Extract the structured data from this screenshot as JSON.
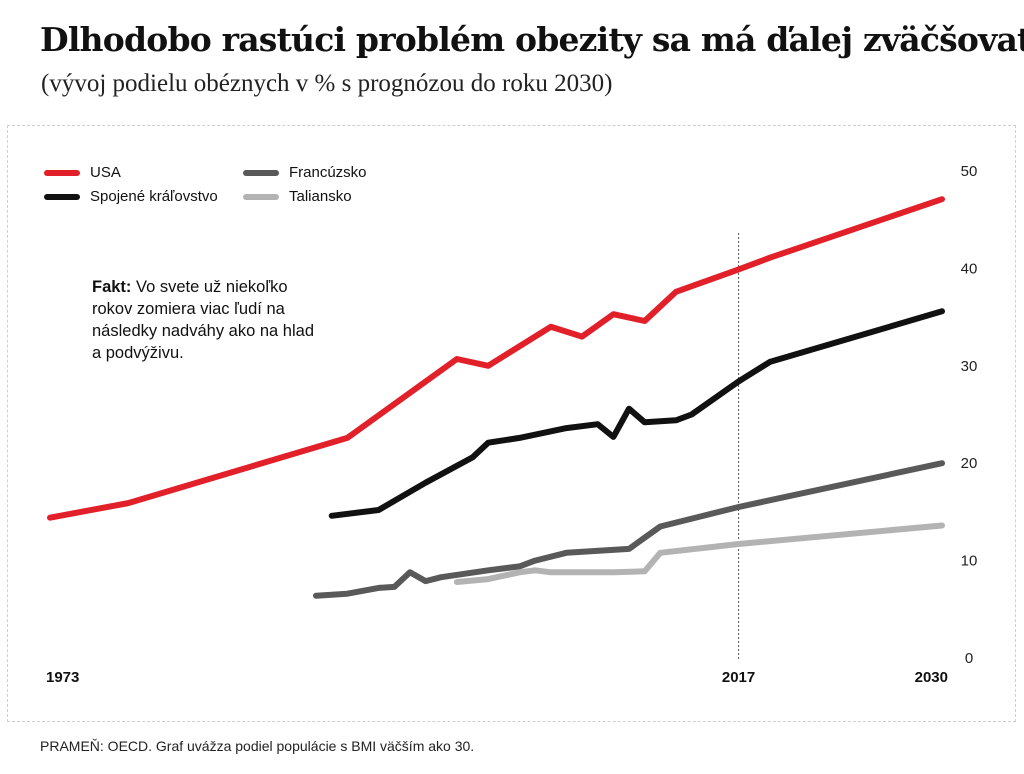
{
  "header": {
    "title": "Dlhodobo rastúci problém obezity sa má ďalej zväčšovať",
    "subtitle": "(vývoj podielu obéznych v % s prognózou do roku 2030)"
  },
  "note": {
    "lead": "Fakt:",
    "text": " Vo svete už niekoľko rokov zomiera viac ľudí na následky nadváhy ako na hlad a podvýživu."
  },
  "source": "PRAMEŇ: OECD. Graf uvážza podiel populácie s BMI väčším ako 30.",
  "chart_data": {
    "type": "line",
    "title": "Dlhodobo rastúci problém obezity sa má ďalej zväčšovať",
    "ylabel": "%",
    "ylim": [
      0,
      50
    ],
    "xlim": [
      1973,
      2030
    ],
    "yticks": [
      0,
      10,
      20,
      30,
      40,
      50
    ],
    "xtick_labels": [
      "1973",
      "2017",
      "2030"
    ],
    "marker_year": 2017,
    "grid": false,
    "legend_position": "top-left",
    "series": [
      {
        "name": "USA",
        "color": "#e2202a",
        "points": [
          [
            1973,
            14.4
          ],
          [
            1978,
            15.9
          ],
          [
            1992,
            22.6
          ],
          [
            1999,
            30.7
          ],
          [
            2001,
            30.0
          ],
          [
            2005,
            34.0
          ],
          [
            2007,
            33.0
          ],
          [
            2009,
            35.3
          ],
          [
            2011,
            34.6
          ],
          [
            2013,
            37.6
          ],
          [
            2017,
            39.9
          ],
          [
            2019,
            41.1
          ],
          [
            2030,
            47.1
          ]
        ]
      },
      {
        "name": "Spojené kráľovstvo",
        "color": "#111111",
        "points": [
          [
            1991,
            14.6
          ],
          [
            1994,
            15.2
          ],
          [
            1997,
            18.0
          ],
          [
            2000,
            20.6
          ],
          [
            2001,
            22.1
          ],
          [
            2003,
            22.6
          ],
          [
            2006,
            23.6
          ],
          [
            2008,
            24.0
          ],
          [
            2009,
            22.7
          ],
          [
            2010,
            25.6
          ],
          [
            2011,
            24.2
          ],
          [
            2013,
            24.4
          ],
          [
            2014,
            25.0
          ],
          [
            2017,
            28.4
          ],
          [
            2019,
            30.4
          ],
          [
            2030,
            35.6
          ]
        ]
      },
      {
        "name": "Francúzsko",
        "color": "#595959",
        "points": [
          [
            1990,
            6.4
          ],
          [
            1992,
            6.6
          ],
          [
            1994,
            7.2
          ],
          [
            1995,
            7.3
          ],
          [
            1996,
            8.8
          ],
          [
            1997,
            7.9
          ],
          [
            1998,
            8.3
          ],
          [
            2001,
            9.0
          ],
          [
            2003,
            9.4
          ],
          [
            2004,
            10.0
          ],
          [
            2006,
            10.8
          ],
          [
            2010,
            11.2
          ],
          [
            2012,
            13.5
          ],
          [
            2017,
            15.5
          ],
          [
            2030,
            20.0
          ]
        ]
      },
      {
        "name": "Taliansko",
        "color": "#b3b3b3",
        "points": [
          [
            1999,
            7.8
          ],
          [
            2001,
            8.1
          ],
          [
            2003,
            8.8
          ],
          [
            2004,
            9.0
          ],
          [
            2005,
            8.8
          ],
          [
            2009,
            8.8
          ],
          [
            2011,
            8.9
          ],
          [
            2012,
            10.8
          ],
          [
            2017,
            11.7
          ],
          [
            2030,
            13.6
          ]
        ]
      }
    ]
  }
}
